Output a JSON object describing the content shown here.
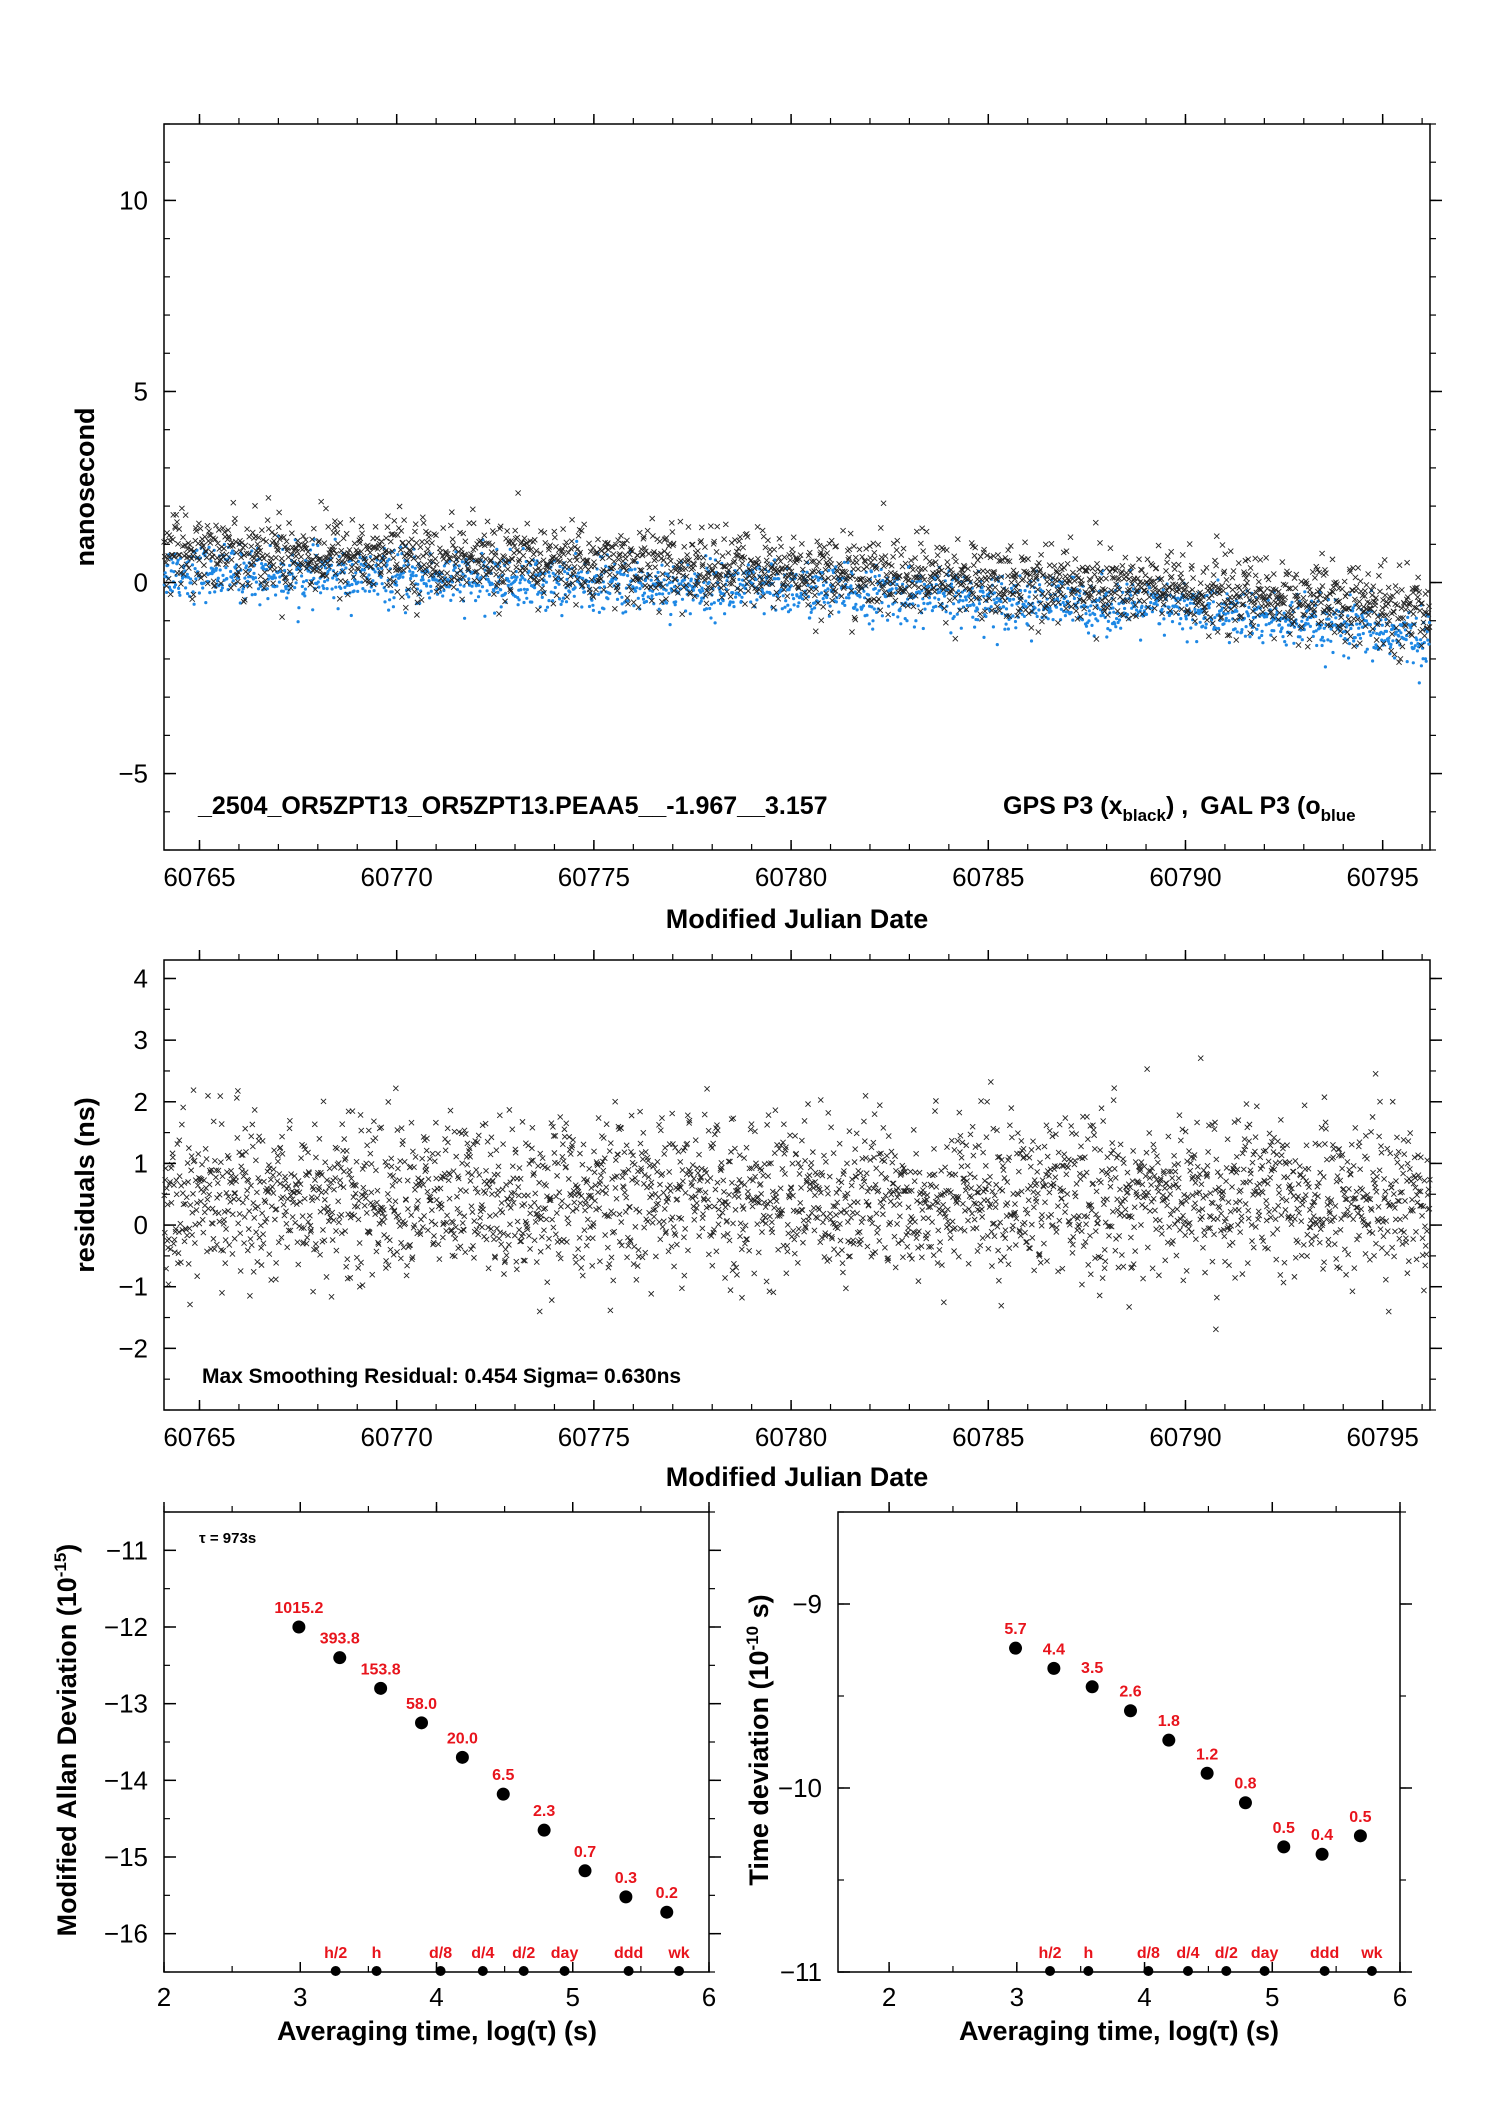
{
  "chart_data": [
    {
      "type": "scatter",
      "xlabel": "Modified Julian Date",
      "ylabel": "nanosecond",
      "xlim": [
        60764.1,
        60796.2
      ],
      "ylim": [
        -7,
        12
      ],
      "xticks": [
        60765,
        60770,
        60775,
        60780,
        60785,
        60790,
        60795
      ],
      "yticks": [
        10,
        5,
        0,
        -5
      ],
      "ytick_labels": [
        "10",
        "5",
        "0",
        "−5"
      ],
      "annotation": "_2504_OR5ZPT13_OR5ZPT13.PEAA5__-1.967__3.157",
      "legend": {
        "gps": "GPS P3 (x",
        "gps_sub": "black",
        "sep": ") ,",
        "gal": "GAL P3 (o",
        "gal_sub": "blue"
      },
      "series": [
        {
          "name": "GPS P3",
          "marker": "x",
          "color": "#222222",
          "trend": [
            [
              60764.1,
              0.9
            ],
            [
              60780,
              0.3
            ],
            [
              60790,
              -0.2
            ],
            [
              60796.2,
              -0.8
            ]
          ],
          "spread": 0.5
        },
        {
          "name": "GAL P3",
          "marker": "o",
          "color": "#1e88e5",
          "trend": [
            [
              60764.1,
              0.3
            ],
            [
              60780,
              -0.2
            ],
            [
              60790,
              -0.7
            ],
            [
              60796.2,
              -1.5
            ]
          ],
          "spread": 0.35
        }
      ],
      "colors": {
        "gps": "#222222",
        "gal": "#1e88e5"
      }
    },
    {
      "type": "scatter",
      "xlabel": "Modified Julian Date",
      "ylabel": "residuals (ns)",
      "xlim": [
        60764.1,
        60796.2
      ],
      "ylim": [
        -3,
        4.3
      ],
      "xticks": [
        60765,
        60770,
        60775,
        60780,
        60785,
        60790,
        60795
      ],
      "yticks": [
        4,
        3,
        2,
        1,
        0,
        -1,
        -2
      ],
      "ytick_labels": [
        "4",
        "3",
        "2",
        "1",
        "0",
        "−1",
        "−2"
      ],
      "annotation": "Max Smoothing Residual: 0.454  Sigma= 0.630ns",
      "series": [
        {
          "name": "residuals",
          "marker": "x",
          "color": "#222222",
          "mean": 0.45,
          "sigma": 0.63
        }
      ]
    },
    {
      "type": "scatter",
      "xlabel": "Averaging time, log(τ) (s)",
      "ylabel_main": "Modified Allan Deviation (10",
      "ylabel_sup": "-15",
      "ylabel_end": ")",
      "annotation": "τ = 973s",
      "xlim": [
        2,
        6
      ],
      "ylim": [
        -16.5,
        -10.5
      ],
      "xticks": [
        2,
        3,
        4,
        5,
        6
      ],
      "yticks": [
        -11,
        -12,
        -13,
        -14,
        -15,
        -16
      ],
      "ytick_labels": [
        "−11",
        "−12",
        "−13",
        "−14",
        "−15",
        "−16"
      ],
      "points": [
        {
          "x": 2.99,
          "y": -12.0,
          "label": "1015.2"
        },
        {
          "x": 3.29,
          "y": -12.4,
          "label": "393.8"
        },
        {
          "x": 3.59,
          "y": -12.8,
          "label": "153.8"
        },
        {
          "x": 3.89,
          "y": -13.25,
          "label": "58.0"
        },
        {
          "x": 4.19,
          "y": -13.7,
          "label": "20.0"
        },
        {
          "x": 4.49,
          "y": -14.18,
          "label": "6.5"
        },
        {
          "x": 4.79,
          "y": -14.65,
          "label": "2.3"
        },
        {
          "x": 5.09,
          "y": -15.18,
          "label": "0.7"
        },
        {
          "x": 5.39,
          "y": -15.52,
          "label": "0.3"
        },
        {
          "x": 5.69,
          "y": -15.72,
          "label": "0.2"
        }
      ],
      "markers": [
        {
          "x": 3.26,
          "label": "h/2"
        },
        {
          "x": 3.56,
          "label": "h"
        },
        {
          "x": 4.03,
          "label": "d/8"
        },
        {
          "x": 4.34,
          "label": "d/4"
        },
        {
          "x": 4.64,
          "label": "d/2"
        },
        {
          "x": 4.94,
          "label": "day"
        },
        {
          "x": 5.41,
          "label": "ddd"
        },
        {
          "x": 5.78,
          "label": "wk"
        }
      ]
    },
    {
      "type": "scatter",
      "xlabel": "Averaging time, log(τ) (s)",
      "ylabel_main": "Time deviation (10",
      "ylabel_sup": "-10",
      "ylabel_end": " s)",
      "xlim": [
        1.6,
        6
      ],
      "ylim": [
        -11,
        -8.5
      ],
      "xticks": [
        2,
        3,
        4,
        5,
        6
      ],
      "yticks": [
        -9,
        -10,
        -11
      ],
      "ytick_labels": [
        "−9",
        "−10",
        "−11"
      ],
      "points": [
        {
          "x": 2.99,
          "y": -9.24,
          "label": "5.7"
        },
        {
          "x": 3.29,
          "y": -9.35,
          "label": "4.4"
        },
        {
          "x": 3.59,
          "y": -9.45,
          "label": "3.5"
        },
        {
          "x": 3.89,
          "y": -9.58,
          "label": "2.6"
        },
        {
          "x": 4.19,
          "y": -9.74,
          "label": "1.8"
        },
        {
          "x": 4.49,
          "y": -9.92,
          "label": "1.2"
        },
        {
          "x": 4.79,
          "y": -10.08,
          "label": "0.8"
        },
        {
          "x": 5.09,
          "y": -10.32,
          "label": "0.5"
        },
        {
          "x": 5.39,
          "y": -10.36,
          "label": "0.4"
        },
        {
          "x": 5.69,
          "y": -10.26,
          "label": "0.5"
        }
      ],
      "markers": [
        {
          "x": 3.26,
          "label": "h/2"
        },
        {
          "x": 3.56,
          "label": "h"
        },
        {
          "x": 4.03,
          "label": "d/8"
        },
        {
          "x": 4.34,
          "label": "d/4"
        },
        {
          "x": 4.64,
          "label": "d/2"
        },
        {
          "x": 4.94,
          "label": "day"
        },
        {
          "x": 5.41,
          "label": "ddd"
        },
        {
          "x": 5.78,
          "label": "wk"
        }
      ]
    }
  ]
}
